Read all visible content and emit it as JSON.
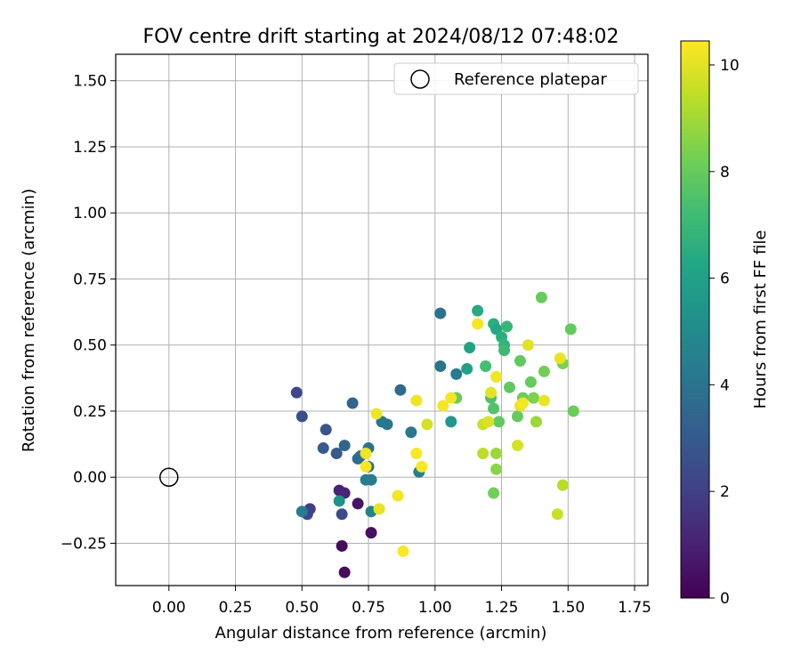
{
  "chart_data": {
    "type": "scatter",
    "title": "FOV centre drift starting at 2024/08/12 07:48:02",
    "xlabel": "Angular distance from reference (arcmin)",
    "ylabel": "Rotation from reference (arcmin)",
    "xlim": [
      -0.2,
      1.8
    ],
    "ylim": [
      -0.41,
      1.6
    ],
    "x_ticks": [
      0.0,
      0.25,
      0.5,
      0.75,
      1.0,
      1.25,
      1.5,
      1.75
    ],
    "x_tick_labels": [
      "0.00",
      "0.25",
      "0.50",
      "0.75",
      "1.00",
      "1.25",
      "1.50",
      "1.75"
    ],
    "y_ticks": [
      -0.25,
      0.0,
      0.25,
      0.5,
      0.75,
      1.0,
      1.25,
      1.5
    ],
    "y_tick_labels": [
      "−0.25",
      "0.00",
      "0.25",
      "0.50",
      "0.75",
      "1.00",
      "1.25",
      "1.50"
    ],
    "grid": true,
    "legend": {
      "placement": "top-right",
      "entries": [
        "Reference platepar"
      ]
    },
    "reference_point": {
      "x": 0.0,
      "y": 0.0,
      "label": "Reference platepar"
    },
    "colorbar": {
      "label": "Hours from first FF file",
      "colormap": "viridis",
      "range": [
        0,
        10.45
      ],
      "ticks": [
        0,
        2,
        4,
        6,
        8,
        10
      ],
      "tick_labels": [
        "0",
        "2",
        "4",
        "6",
        "8",
        "10"
      ]
    },
    "points": [
      {
        "x": 0.66,
        "y": -0.36,
        "h": 0.3
      },
      {
        "x": 0.65,
        "y": -0.26,
        "h": 0.3
      },
      {
        "x": 0.76,
        "y": -0.21,
        "h": 0.5
      },
      {
        "x": 0.71,
        "y": -0.1,
        "h": 0.6
      },
      {
        "x": 0.64,
        "y": -0.05,
        "h": 1.0
      },
      {
        "x": 0.66,
        "y": -0.06,
        "h": 1.1
      },
      {
        "x": 0.53,
        "y": -0.12,
        "h": 2.0
      },
      {
        "x": 0.52,
        "y": -0.14,
        "h": 2.2
      },
      {
        "x": 0.65,
        "y": -0.14,
        "h": 2.4
      },
      {
        "x": 0.48,
        "y": 0.32,
        "h": 2.3
      },
      {
        "x": 0.5,
        "y": 0.23,
        "h": 2.5
      },
      {
        "x": 0.59,
        "y": 0.18,
        "h": 2.7
      },
      {
        "x": 0.58,
        "y": 0.11,
        "h": 3.0
      },
      {
        "x": 0.63,
        "y": 0.09,
        "h": 3.0
      },
      {
        "x": 0.66,
        "y": 0.12,
        "h": 3.4
      },
      {
        "x": 0.69,
        "y": 0.28,
        "h": 3.4
      },
      {
        "x": 0.71,
        "y": 0.07,
        "h": 3.7
      },
      {
        "x": 0.72,
        "y": 0.08,
        "h": 3.8
      },
      {
        "x": 0.75,
        "y": 0.11,
        "h": 4.0
      },
      {
        "x": 0.75,
        "y": 0.04,
        "h": 4.2
      },
      {
        "x": 0.74,
        "y": -0.01,
        "h": 4.4
      },
      {
        "x": 0.76,
        "y": -0.01,
        "h": 4.4
      },
      {
        "x": 0.76,
        "y": -0.13,
        "h": 4.6
      },
      {
        "x": 0.5,
        "y": -0.13,
        "h": 4.3
      },
      {
        "x": 0.64,
        "y": -0.09,
        "h": 5.3
      },
      {
        "x": 0.8,
        "y": 0.21,
        "h": 4.1
      },
      {
        "x": 0.82,
        "y": 0.2,
        "h": 4.1
      },
      {
        "x": 0.87,
        "y": 0.33,
        "h": 3.6
      },
      {
        "x": 0.91,
        "y": 0.17,
        "h": 4.2
      },
      {
        "x": 0.94,
        "y": 0.02,
        "h": 4.5
      },
      {
        "x": 1.02,
        "y": 0.62,
        "h": 3.9
      },
      {
        "x": 1.02,
        "y": 0.42,
        "h": 4.0
      },
      {
        "x": 1.08,
        "y": 0.39,
        "h": 4.3
      },
      {
        "x": 1.06,
        "y": 0.21,
        "h": 5.6
      },
      {
        "x": 1.12,
        "y": 0.41,
        "h": 5.9
      },
      {
        "x": 1.13,
        "y": 0.49,
        "h": 6.1
      },
      {
        "x": 1.08,
        "y": 0.3,
        "h": 8.0
      },
      {
        "x": 1.16,
        "y": 0.63,
        "h": 6.4
      },
      {
        "x": 1.22,
        "y": 0.58,
        "h": 6.6
      },
      {
        "x": 1.23,
        "y": 0.56,
        "h": 6.3
      },
      {
        "x": 1.25,
        "y": 0.53,
        "h": 6.6
      },
      {
        "x": 1.26,
        "y": 0.5,
        "h": 6.8
      },
      {
        "x": 1.27,
        "y": 0.57,
        "h": 6.9
      },
      {
        "x": 1.26,
        "y": 0.48,
        "h": 7.1
      },
      {
        "x": 1.19,
        "y": 0.42,
        "h": 7.3
      },
      {
        "x": 1.21,
        "y": 0.3,
        "h": 7.5
      },
      {
        "x": 1.22,
        "y": 0.26,
        "h": 7.6
      },
      {
        "x": 1.24,
        "y": 0.21,
        "h": 7.9
      },
      {
        "x": 1.28,
        "y": 0.34,
        "h": 7.9
      },
      {
        "x": 1.31,
        "y": 0.23,
        "h": 8.0
      },
      {
        "x": 1.32,
        "y": 0.44,
        "h": 7.9
      },
      {
        "x": 1.33,
        "y": 0.3,
        "h": 8.1
      },
      {
        "x": 1.36,
        "y": 0.36,
        "h": 8.0
      },
      {
        "x": 1.37,
        "y": 0.3,
        "h": 8.4
      },
      {
        "x": 1.38,
        "y": 0.21,
        "h": 8.9
      },
      {
        "x": 1.4,
        "y": 0.68,
        "h": 8.0
      },
      {
        "x": 1.41,
        "y": 0.4,
        "h": 8.2
      },
      {
        "x": 1.48,
        "y": 0.43,
        "h": 8.4
      },
      {
        "x": 1.51,
        "y": 0.56,
        "h": 7.9
      },
      {
        "x": 1.52,
        "y": 0.25,
        "h": 8.1
      },
      {
        "x": 1.22,
        "y": -0.06,
        "h": 8.2
      },
      {
        "x": 1.23,
        "y": 0.03,
        "h": 8.6
      },
      {
        "x": 1.23,
        "y": 0.09,
        "h": 8.9
      },
      {
        "x": 1.18,
        "y": 0.09,
        "h": 9.4
      },
      {
        "x": 1.18,
        "y": 0.2,
        "h": 9.6
      },
      {
        "x": 1.2,
        "y": 0.21,
        "h": 9.9
      },
      {
        "x": 1.21,
        "y": 0.32,
        "h": 10.0
      },
      {
        "x": 1.23,
        "y": 0.38,
        "h": 10.2
      },
      {
        "x": 1.16,
        "y": 0.58,
        "h": 10.3
      },
      {
        "x": 1.31,
        "y": 0.12,
        "h": 9.8
      },
      {
        "x": 1.32,
        "y": 0.27,
        "h": 10.1
      },
      {
        "x": 1.33,
        "y": 0.28,
        "h": 10.3
      },
      {
        "x": 1.35,
        "y": 0.5,
        "h": 10.0
      },
      {
        "x": 1.41,
        "y": 0.29,
        "h": 10.1
      },
      {
        "x": 1.47,
        "y": 0.45,
        "h": 10.1
      },
      {
        "x": 1.46,
        "y": -0.14,
        "h": 9.6
      },
      {
        "x": 1.48,
        "y": -0.03,
        "h": 9.3
      },
      {
        "x": 0.97,
        "y": 0.2,
        "h": 9.8
      },
      {
        "x": 0.93,
        "y": 0.29,
        "h": 10.2
      },
      {
        "x": 1.03,
        "y": 0.27,
        "h": 10.3
      },
      {
        "x": 1.06,
        "y": 0.3,
        "h": 10.3
      },
      {
        "x": 0.93,
        "y": 0.09,
        "h": 10.4
      },
      {
        "x": 0.95,
        "y": 0.04,
        "h": 10.4
      },
      {
        "x": 0.78,
        "y": 0.24,
        "h": 10.2
      },
      {
        "x": 0.74,
        "y": 0.09,
        "h": 10.2
      },
      {
        "x": 0.74,
        "y": 0.04,
        "h": 10.4
      },
      {
        "x": 0.79,
        "y": -0.12,
        "h": 10.1
      },
      {
        "x": 0.86,
        "y": -0.07,
        "h": 10.3
      },
      {
        "x": 0.88,
        "y": -0.28,
        "h": 10.4
      }
    ]
  }
}
